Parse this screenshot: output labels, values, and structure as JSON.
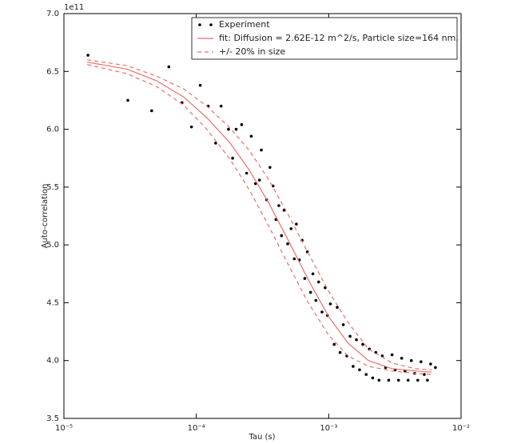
{
  "chart_data": {
    "type": "scatter",
    "offset_label": "1e11",
    "xlabel": "Tau (s)",
    "ylabel": "Auto-correlation",
    "xscale": "log",
    "xlim": [
      1e-05,
      0.01
    ],
    "xticks": [
      {
        "value": 1e-05,
        "label": "10⁻⁵"
      },
      {
        "value": 0.0001,
        "label": "10⁻⁴"
      },
      {
        "value": 0.001,
        "label": "10⁻³"
      },
      {
        "value": 0.01,
        "label": "10⁻²"
      }
    ],
    "ylim": [
      3.5,
      7.0
    ],
    "yticks": [
      3.5,
      {
        "value": 4,
        "label": "4.0"
      },
      4.5,
      {
        "value": 5,
        "label": "5.0"
      },
      5.5,
      {
        "value": 6,
        "label": "6.0"
      },
      6.5,
      {
        "value": 7,
        "label": "7.0"
      }
    ],
    "legend": "upper right",
    "series": [
      {
        "name": "Experiment",
        "style": "markers",
        "color": "#000000",
        "x": [
          1.52e-05,
          3.04e-05,
          4.6e-05,
          6.2e-05,
          7.8e-05,
          9.2e-05,
          0.000107,
          0.000123,
          0.00014,
          0.000154,
          0.000175,
          0.000188,
          0.0002,
          0.00022,
          0.00024,
          0.00026,
          0.00028,
          0.0003,
          0.00031,
          0.00034,
          0.00036,
          0.00038,
          0.0004,
          0.00042,
          0.00044,
          0.00046,
          0.00049,
          0.00052,
          0.00055,
          0.00057,
          0.0006,
          0.00063,
          0.00066,
          0.00069,
          0.00073,
          0.00076,
          0.0008,
          0.00084,
          0.00089,
          0.00094,
          0.00098,
          0.00103,
          0.0011,
          0.00116,
          0.00122,
          0.00129,
          0.00137,
          0.00145,
          0.00153,
          0.00162,
          0.00171,
          0.00181,
          0.00192,
          0.00203,
          0.00215,
          0.00227,
          0.0024,
          0.00254,
          0.00269,
          0.00284,
          0.00301,
          0.00318,
          0.00337,
          0.00356,
          0.00377,
          0.00398,
          0.00421,
          0.00446,
          0.00471,
          0.00498,
          0.00527,
          0.00557,
          0.00589,
          0.0064
        ],
        "values": [
          6.64,
          6.25,
          6.16,
          6.54,
          6.23,
          6.02,
          6.38,
          6.2,
          5.88,
          6.2,
          6.0,
          5.75,
          6.0,
          6.04,
          5.62,
          5.94,
          5.53,
          5.56,
          5.82,
          5.39,
          5.67,
          5.51,
          5.22,
          5.34,
          5.08,
          5.3,
          5.01,
          5.14,
          4.88,
          5.18,
          4.87,
          5.04,
          4.71,
          4.94,
          4.59,
          4.75,
          4.52,
          4.68,
          4.42,
          4.63,
          4.39,
          4.49,
          4.14,
          4.46,
          4.07,
          4.31,
          4.04,
          4.21,
          3.95,
          4.18,
          3.92,
          4.14,
          3.88,
          4.1,
          3.85,
          4.07,
          3.83,
          4.04,
          3.94,
          3.83,
          4.05,
          3.92,
          3.83,
          4.02,
          3.91,
          3.83,
          4.0,
          3.89,
          3.83,
          3.99,
          3.88,
          3.83,
          3.97,
          3.94
        ]
      },
      {
        "name": "fit: Diffusion = 2.62E-12 m^2/s, Particle size=164 nm,",
        "style": "line",
        "color": "#e8706a",
        "x": [
          1.5e-05,
          3e-05,
          5e-05,
          8e-05,
          0.00012,
          0.00018,
          0.00025,
          0.00035,
          0.0005,
          0.0007,
          0.001,
          0.0014,
          0.002,
          0.003,
          0.0045,
          0.006
        ],
        "values": [
          6.58,
          6.52,
          6.42,
          6.28,
          6.1,
          5.88,
          5.65,
          5.37,
          5.03,
          4.7,
          4.38,
          4.15,
          4.0,
          3.93,
          3.91,
          3.9
        ]
      },
      {
        "name": "+/- 20% in size",
        "style": "dashed",
        "color": "#e8706a",
        "x": [
          1.5e-05,
          3e-05,
          5e-05,
          8e-05,
          0.00012,
          0.00018,
          0.00025,
          0.00035,
          0.0005,
          0.0007,
          0.001,
          0.0014,
          0.002,
          0.003,
          0.0045,
          0.006
        ],
        "values": [
          6.6,
          6.55,
          6.46,
          6.35,
          6.2,
          6.01,
          5.82,
          5.57,
          5.25,
          4.93,
          4.6,
          4.33,
          4.1,
          3.98,
          3.93,
          3.92
        ],
        "values_lower": [
          6.56,
          6.48,
          6.37,
          6.21,
          6.0,
          5.74,
          5.48,
          5.17,
          4.82,
          4.5,
          4.22,
          4.04,
          3.95,
          3.91,
          3.89,
          3.88
        ]
      }
    ]
  }
}
